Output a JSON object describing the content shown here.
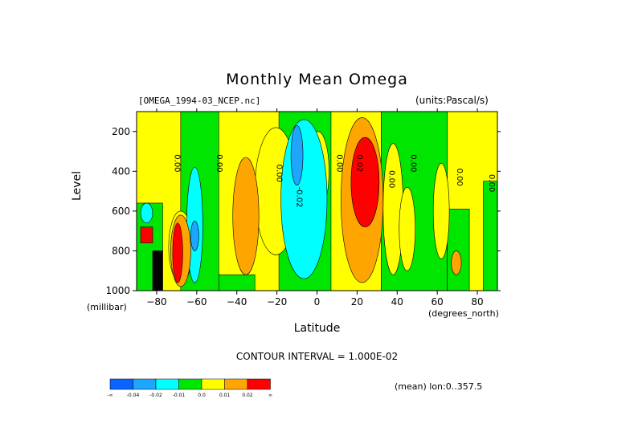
{
  "chart_data": {
    "type": "heatmap",
    "title": "Monthly Mean Omega",
    "source_label": "[OMEGA_1994-03_NCEP.nc]",
    "units_label": "(units:Pascal/s)",
    "xlabel": "Latitude",
    "x_units": "(degrees_north)",
    "ylabel": "Level",
    "y_units": "(millibar)",
    "xlim": [
      -90,
      90
    ],
    "ylim": [
      1000,
      100
    ],
    "y_inverted": true,
    "x_ticks": [
      -80,
      -60,
      -40,
      -20,
      0,
      20,
      40,
      60,
      80
    ],
    "y_ticks": [
      200,
      400,
      600,
      800,
      1000
    ],
    "contour_interval": "CONTOUR INTERVAL = 1.000E-02",
    "mean_label": "(mean) lon:0..357.5",
    "color_levels": [
      {
        "label": "-∞",
        "color": "#0a64ff"
      },
      {
        "label": "-0.04",
        "color": "#1ea6ff"
      },
      {
        "label": "-0.02",
        "color": "#00ffff"
      },
      {
        "label": "-0.01",
        "color": "#00e600"
      },
      {
        "label": "0.0",
        "color": "#ffff00"
      },
      {
        "label": "0.01",
        "color": "#ffa500"
      },
      {
        "label": "0.02",
        "color": "#ff0000"
      },
      {
        "label": "∞",
        "color": null
      }
    ],
    "contour_labels": [
      {
        "lat": -71,
        "lev": 360,
        "text": "0.00"
      },
      {
        "lat": -50,
        "lev": 360,
        "text": "0.00"
      },
      {
        "lat": -20,
        "lev": 410,
        "text": "0.00"
      },
      {
        "lat": -10,
        "lev": 530,
        "text": "-0.02"
      },
      {
        "lat": 10,
        "lev": 360,
        "text": "0.00"
      },
      {
        "lat": 20,
        "lev": 360,
        "text": "0.02"
      },
      {
        "lat": 36,
        "lev": 440,
        "text": "0.00"
      },
      {
        "lat": 47,
        "lev": 360,
        "text": "0.00"
      },
      {
        "lat": 70,
        "lev": 430,
        "text": "0.00"
      },
      {
        "lat": 86,
        "lev": 460,
        "text": "0.00"
      }
    ],
    "regions": [
      {
        "level": "0.0",
        "shape": "rect",
        "lat": [
          -90,
          90
        ],
        "lev": [
          100,
          1000
        ]
      },
      {
        "level": "-0.01",
        "shape": "rect",
        "lat": [
          -68,
          -49
        ],
        "lev": [
          100,
          1000
        ]
      },
      {
        "level": "-0.01",
        "shape": "rect",
        "lat": [
          -19,
          7
        ],
        "lev": [
          100,
          1000
        ]
      },
      {
        "level": "-0.01",
        "shape": "rect",
        "lat": [
          32,
          65
        ],
        "lev": [
          100,
          1000
        ]
      },
      {
        "level": "-0.01",
        "shape": "rect",
        "lat": [
          -90,
          -77
        ],
        "lev": [
          560,
          1000
        ]
      },
      {
        "level": "-0.01",
        "shape": "rect",
        "lat": [
          -49,
          -31
        ],
        "lev": [
          920,
          1000
        ]
      },
      {
        "level": "-0.01",
        "shape": "rect",
        "lat": [
          65,
          76
        ],
        "lev": [
          590,
          1000
        ]
      },
      {
        "level": "-0.01",
        "shape": "rect",
        "lat": [
          83,
          90
        ],
        "lev": [
          450,
          1000
        ]
      },
      {
        "level": "0.0",
        "shape": "ellipse",
        "lat": [
          -31,
          -10
        ],
        "lev": [
          180,
          820
        ]
      },
      {
        "level": "0.0",
        "shape": "ellipse",
        "lat": [
          -5,
          6
        ],
        "lev": [
          200,
          600
        ]
      },
      {
        "level": "0.0",
        "shape": "ellipse",
        "lat": [
          33,
          43
        ],
        "lev": [
          260,
          920
        ]
      },
      {
        "level": "0.0",
        "shape": "ellipse",
        "lat": [
          41,
          49
        ],
        "lev": [
          480,
          900
        ]
      },
      {
        "level": "0.0",
        "shape": "ellipse",
        "lat": [
          58,
          66
        ],
        "lev": [
          360,
          840
        ]
      },
      {
        "level": "0.0",
        "shape": "ellipse",
        "lat": [
          -74,
          -62
        ],
        "lev": [
          600,
          960
        ]
      },
      {
        "level": "-0.02",
        "shape": "ellipse",
        "lat": [
          -18,
          5
        ],
        "lev": [
          140,
          940
        ]
      },
      {
        "level": "-0.02",
        "shape": "ellipse",
        "lat": [
          -65,
          -57
        ],
        "lev": [
          380,
          960
        ]
      },
      {
        "level": "-0.02",
        "shape": "ellipse",
        "lat": [
          -88,
          -82
        ],
        "lev": [
          560,
          660
        ]
      },
      {
        "level": "-0.04",
        "shape": "ellipse",
        "lat": [
          -13,
          -7
        ],
        "lev": [
          170,
          470
        ]
      },
      {
        "level": "-0.04",
        "shape": "ellipse",
        "lat": [
          -63,
          -59
        ],
        "lev": [
          650,
          800
        ]
      },
      {
        "level": "0.01",
        "shape": "ellipse",
        "lat": [
          -42,
          -29
        ],
        "lev": [
          330,
          920
        ]
      },
      {
        "level": "0.01",
        "shape": "ellipse",
        "lat": [
          12,
          33
        ],
        "lev": [
          130,
          960
        ]
      },
      {
        "level": "0.01",
        "shape": "ellipse",
        "lat": [
          -73,
          -63
        ],
        "lev": [
          620,
          980
        ]
      },
      {
        "level": "0.01",
        "shape": "ellipse",
        "lat": [
          67,
          72
        ],
        "lev": [
          800,
          920
        ]
      },
      {
        "level": "0.02",
        "shape": "ellipse",
        "lat": [
          17,
          31
        ],
        "lev": [
          230,
          680
        ]
      },
      {
        "level": "0.02",
        "shape": "ellipse",
        "lat": [
          -72,
          -67
        ],
        "lev": [
          660,
          960
        ]
      },
      {
        "level": "0.02",
        "shape": "rect",
        "lat": [
          -88,
          -82
        ],
        "lev": [
          680,
          760
        ]
      },
      {
        "level": "-∞",
        "shape": "rect",
        "lat": [
          -82,
          -77
        ],
        "lev": [
          800,
          1000
        ]
      }
    ]
  }
}
